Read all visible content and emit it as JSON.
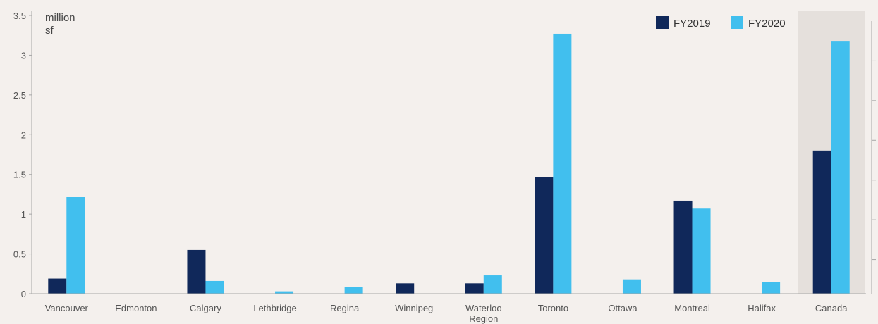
{
  "chart_data": {
    "type": "bar",
    "ylabel": "million sf",
    "ylabel_lines": [
      "million",
      "sf"
    ],
    "ylim": [
      0,
      3.5
    ],
    "yticks": [
      0,
      0.5,
      1,
      1.5,
      2,
      2.5,
      3,
      3.5
    ],
    "ytick_labels": [
      "0",
      "0.5",
      "1",
      "1.5",
      "2",
      "2.5",
      "3",
      "3.5"
    ],
    "grid": false,
    "legend_position": "top-right",
    "highlight_category": "Canada",
    "categories": [
      "Vancouver",
      "Edmonton",
      "Calgary",
      "Lethbridge",
      "Regina",
      "Winnipeg",
      "Waterloo Region",
      "Toronto",
      "Ottawa",
      "Montreal",
      "Halifax",
      "Canada"
    ],
    "category_lines": [
      [
        "Vancouver"
      ],
      [
        "Edmonton"
      ],
      [
        "Calgary"
      ],
      [
        "Lethbridge"
      ],
      [
        "Regina"
      ],
      [
        "Winnipeg"
      ],
      [
        "Waterloo",
        "Region"
      ],
      [
        "Toronto"
      ],
      [
        "Ottawa"
      ],
      [
        "Montreal"
      ],
      [
        "Halifax"
      ],
      [
        "Canada"
      ]
    ],
    "series": [
      {
        "name": "FY2019",
        "color": "#10285a",
        "values": [
          0.19,
          0,
          0.55,
          0,
          0,
          0.13,
          0.13,
          1.47,
          0,
          1.17,
          0,
          1.8
        ]
      },
      {
        "name": "FY2020",
        "color": "#41bfee",
        "values": [
          1.22,
          0,
          0.16,
          0.03,
          0.08,
          0,
          0.23,
          3.27,
          0.18,
          1.07,
          0.15,
          3.18
        ]
      }
    ],
    "colors": {
      "background": "#f4f0ed",
      "highlight_band": "#e5e0dc",
      "axis": "#a7a7a7",
      "text": "#555555"
    }
  }
}
